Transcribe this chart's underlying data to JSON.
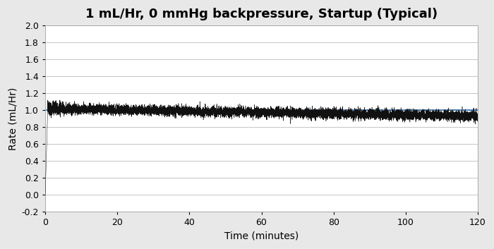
{
  "title": "1 mL/Hr, 0 mmHg backpressure, Startup (Typical)",
  "xlabel": "Time (minutes)",
  "ylabel": "Rate (mL/Hr)",
  "xlim": [
    0,
    120
  ],
  "ylim": [
    -0.2,
    2.0
  ],
  "yticks": [
    -0.2,
    0.0,
    0.2,
    0.4,
    0.6,
    0.8,
    1.0,
    1.2,
    1.4,
    1.6,
    1.8,
    2.0
  ],
  "xticks": [
    0,
    20,
    40,
    60,
    80,
    100,
    120
  ],
  "target_rate": 1.0,
  "blue_line_color": "#3070b0",
  "signal_color": "#111111",
  "background_color": "#ffffff",
  "plot_bg_color": "#ffffff",
  "fig_bg_color": "#e8e8e8",
  "title_fontsize": 13,
  "axis_label_fontsize": 10,
  "tick_fontsize": 9,
  "startup_duration_min": 0.7,
  "noise_amplitude": 0.028,
  "mean_start": 1.02,
  "mean_end": 0.93,
  "n_points": 14400,
  "seed": 7
}
